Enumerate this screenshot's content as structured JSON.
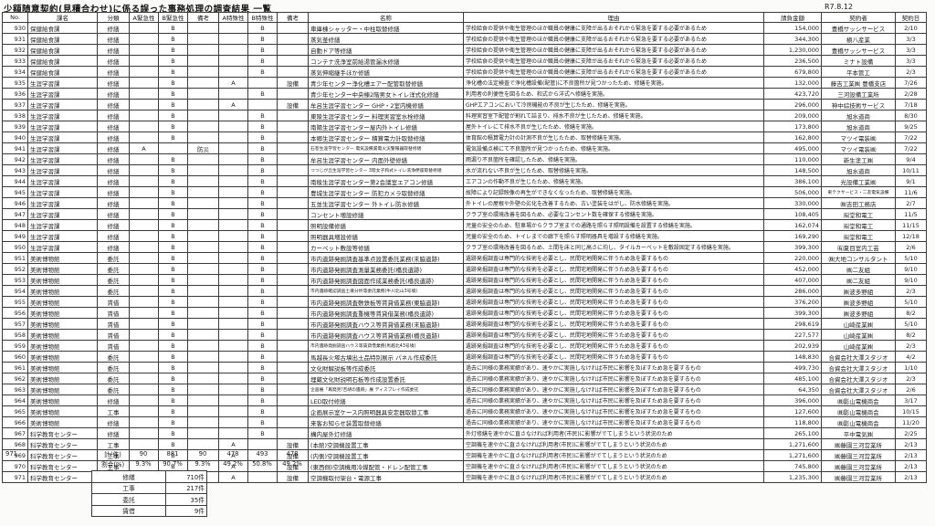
{
  "document": {
    "title": "少額随意契約(見積合わせ)に係る誤った事務処理の調査結果 一覧",
    "date": "R7.8.12"
  },
  "table": {
    "headers": [
      "No.",
      "課名",
      "分類",
      "A緊急性",
      "B緊急性",
      "備考",
      "A特殊性",
      "B特殊性",
      "備考",
      "名称",
      "理由",
      "請負金額",
      "契約者",
      "契約日"
    ],
    "col_keys": [
      "no",
      "department",
      "category",
      "urgency-a",
      "urgency-b",
      "note1",
      "special-a",
      "special-b",
      "note2",
      "name",
      "reason",
      "amount",
      "contractor",
      "date"
    ],
    "small_name_rows": [
      "941",
      "943",
      "954",
      "959",
      "963"
    ],
    "small_contractor_rows": [
      "945"
    ],
    "rows": [
      [
        "930",
        "保健給食課",
        "修繕",
        "",
        "B",
        "",
        "",
        "B",
        "",
        "車庫棟シャッター・中柱取替修繕",
        "学校給食の提供や衛生管理のほか職員の健康に支障が出るおそれから緊急を要する必要があるため",
        "154,000",
        "豊橋サッシサービス",
        "2/10"
      ],
      [
        "931",
        "保健給食課",
        "修繕",
        "",
        "B",
        "",
        "",
        "B",
        "",
        "蒸気釜修繕",
        "学校給食の提供や衛生管理のほか職員の健康に支障が出るおそれから緊急を要する必要があるため",
        "344,300",
        "槇八産業",
        "3/3"
      ],
      [
        "932",
        "保健給食課",
        "修繕",
        "",
        "B",
        "",
        "",
        "B",
        "",
        "自動ドア等修繕",
        "学校給食の提供や衛生管理のほか職員の健康に支障が出るおそれから緊急を要する必要があるため",
        "1,230,000",
        "豊橋サッシサービス",
        "3/3"
      ],
      [
        "933",
        "保健給食課",
        "修繕",
        "",
        "B",
        "",
        "",
        "B",
        "",
        "コンテナ洗浄室前給湯管漏水修繕",
        "学校給食の提供や衛生管理のほか職員の健康に支障が出るおそれから緊急を要する必要があるため",
        "236,500",
        "ミナト設備",
        "3/3"
      ],
      [
        "934",
        "保健給食課",
        "修繕",
        "",
        "B",
        "",
        "",
        "B",
        "",
        "蒸気伸縮継手ほか修繕",
        "学校給食の提供や衛生管理のほか職員の健康に支障が出るおそれから緊急を要する必要があるため",
        "679,800",
        "平本管工",
        "2/3"
      ],
      [
        "935",
        "生涯学習課",
        "修繕",
        "",
        "B",
        "",
        "A",
        "",
        "設備",
        "青少年センター浄化槽エアー配管取替修繕",
        "浄化槽の法定検査で浄化槽設備(配管)に不良箇所が見つかったため、修繕を実施。",
        "132,000",
        "藤吉工業㈱ 豊橋支店",
        "7/26"
      ],
      [
        "936",
        "生涯学習課",
        "修繕",
        "",
        "B",
        "",
        "",
        "B",
        "",
        "青少年センター中央棟2階男女トイレ洋式化修繕",
        "利用者の利便性を図るため、和式から洋式へ修繕を実施。",
        "423,720",
        "三河設備工業所",
        "2/28"
      ],
      [
        "937",
        "生涯学習課",
        "修繕",
        "",
        "B",
        "",
        "A",
        "",
        "設備",
        "牟呂生涯学習センター GHP・2室内機修繕",
        "GHPエアコンにおいて冷房機能の不良が生じたため、修繕を実施。",
        "296,000",
        "神中綜技術サービス",
        "7/18"
      ],
      [
        "938",
        "生涯学習課",
        "修繕",
        "",
        "B",
        "",
        "",
        "B",
        "",
        "東陵生涯学習センター 料理実習室水栓修繕",
        "料理実習室下配管が割れて詰まり、排水不良が生じたため、修繕を実施。",
        "209,000",
        "旭水道商",
        "8/30"
      ],
      [
        "939",
        "生涯学習課",
        "修繕",
        "",
        "B",
        "",
        "",
        "B",
        "",
        "南陽生涯学習センター屋内外トイレ修繕",
        "屋外トイレにて排水不良が生じたため、修繕を実施。",
        "173,800",
        "旭水道商",
        "9/25"
      ],
      [
        "940",
        "生涯学習課",
        "修繕",
        "",
        "B",
        "",
        "",
        "B",
        "",
        "本郷生涯学習センター 積算電力計取替修繕",
        "体育館の積算電力計の計測不良が生じたため、取替修繕を実施。",
        "162,800",
        "マツイ電装㈱",
        "7/22"
      ],
      [
        "941",
        "生涯学習課",
        "修繕",
        "A",
        "",
        "防災",
        "",
        "B",
        "",
        "石巻生涯学習センター 電気設備漏電火災警報器取替修繕",
        "電気設備点検にて不良箇所が見つかったため、修繕を実施。",
        "495,000",
        "マツイ電装㈱",
        "7/22"
      ],
      [
        "942",
        "生涯学習課",
        "修繕",
        "",
        "B",
        "",
        "",
        "B",
        "",
        "牟呂生涯学習センター 内面外壁修繕",
        "雨漏り不良箇所を確認したため、修繕を実施。",
        "110,000",
        "新生塗工㈱",
        "9/4"
      ],
      [
        "943",
        "生涯学習課",
        "修繕",
        "",
        "B",
        "",
        "",
        "B",
        "",
        "つつじが丘生涯学習センター 3階女子和式トイレ洗浄便座取替修繕",
        "水が流れない不良が生じたため、取替修繕を実施。",
        "148,500",
        "旭水道商",
        "10/11"
      ],
      [
        "944",
        "生涯学習課",
        "修繕",
        "",
        "B",
        "",
        "",
        "B",
        "",
        "南稜生涯学習センター第2会議室エアコン修繕",
        "エアコンの作動不良が生じたため、修繕を実施。",
        "386,100",
        "光設備工業㈱",
        "9/1"
      ],
      [
        "945",
        "生涯学習課",
        "修繕",
        "",
        "B",
        "",
        "",
        "B",
        "",
        "豊城生涯学習センター 防犯カメラ取替修繕",
        "故障により記録映像の再生ができなくなったため、取替修繕を実施。",
        "506,000",
        "東テクサービス・二友電気設備",
        "11/6"
      ],
      [
        "946",
        "生涯学習課",
        "修繕",
        "",
        "B",
        "",
        "",
        "B",
        "",
        "五並生涯学習センター 外トイレ防水修繕",
        "外トイレの屋根や外壁の劣化を改善するため、古い塗装をはがし、防水修繕を実施。",
        "330,000",
        "㈱吉田工務店",
        "2/7"
      ],
      [
        "947",
        "生涯学習課",
        "修繕",
        "",
        "B",
        "",
        "",
        "B",
        "",
        "コンセント増設修繕",
        "クラブ室の環境改善を図るため、必要なコンセント数を確保する修繕を実施。",
        "108,405",
        "㈲堂和電工",
        "11/5"
      ],
      [
        "948",
        "生涯学習課",
        "修繕",
        "",
        "B",
        "",
        "",
        "B",
        "",
        "照明設備修繕",
        "児童の安全のため、駐車場からクラブ室までの通路を照らす照明設備を設置する修繕を実施。",
        "162,074",
        "㈲堂和電工",
        "11/15"
      ],
      [
        "949",
        "生涯学習課",
        "修繕",
        "",
        "B",
        "",
        "",
        "B",
        "",
        "照明器具増設修繕",
        "児童の安全のため、トイレまでの廊下を照らす照明器具を増設する修繕を実施。",
        "169,290",
        "㈲堂和電工",
        "12/18"
      ],
      [
        "950",
        "生涯学習課",
        "修繕",
        "",
        "B",
        "",
        "",
        "B",
        "",
        "カーペット敷設等修繕",
        "クラブ室の環境改善を図るため、土間を床と同じ高さに均し、タイルカーペットを敷設固定する修繕を実施。",
        "399,300",
        "㈲夏目室内工芸",
        "2/6"
      ],
      [
        "951",
        "美術博物館",
        "委託",
        "",
        "B",
        "",
        "",
        "B",
        "",
        "市内遺跡発掘調査基準点設置委託業務(末脇遺跡)",
        "遺跡発掘調査は専門的な技術を必要とし、民間宅地開発に伴うため急を要するもの",
        "220,000",
        "㈱大地コンサルタント",
        "5/10"
      ],
      [
        "952",
        "美術博物館",
        "委託",
        "",
        "B",
        "",
        "",
        "B",
        "",
        "市内遺跡発掘調査測量業務委託(橋良遺跡)",
        "遺跡発掘調査は専門的な技術を必要とし、民間宅地開発に伴うため急を要するもの",
        "452,000",
        "㈱二友組",
        "9/10"
      ],
      [
        "953",
        "美術博物館",
        "委託",
        "",
        "B",
        "",
        "",
        "B",
        "",
        "市内遺跡発掘調査図面作成業務委託(橋良遺跡)",
        "遺跡発掘調査は専門的な技術を必要とし、民間宅地開発に伴うため急を要するもの",
        "407,000",
        "㈱二友組",
        "9/10"
      ],
      [
        "954",
        "美術博物館",
        "委託",
        "",
        "B",
        "",
        "",
        "B",
        "",
        "市内遺跡確認調査土壌分析等委託業務(牛川北山3号墳)",
        "遺跡発掘調査は専門的な技術を必要とし、民間宅地開発に伴うため急を要するもの",
        "286,000",
        "㈱波多野組",
        "2/3"
      ],
      [
        "955",
        "美術博物館",
        "賃借",
        "",
        "B",
        "",
        "",
        "B",
        "",
        "市内遺跡発掘調査敷鉄板等賃貸借業務(東脇遺跡)",
        "遺跡発掘調査は専門的な技術を必要とし、民間宅地開発に伴うため急を要するもの",
        "376,200",
        "㈱波多野組",
        "5/10"
      ],
      [
        "956",
        "美術博物館",
        "賃借",
        "",
        "B",
        "",
        "",
        "B",
        "",
        "市内遺跡発掘調査重機等賃貸借業務(橋良遺跡)",
        "遺跡発掘調査は専門的な技術を必要とし、民間宅地開発に伴うため急を要するもの",
        "399,300",
        "㈱波多野組",
        "8/2"
      ],
      [
        "957",
        "美術博物館",
        "賃借",
        "",
        "B",
        "",
        "",
        "B",
        "",
        "市内遺跡発掘調査ハウス等賃貸借業務(末脇遺跡)",
        "遺跡発掘調査は専門的な技術を必要とし、民間宅地開発に伴うため急を要するもの",
        "298,619",
        "山崎産業㈱",
        "5/10"
      ],
      [
        "958",
        "美術博物館",
        "賃借",
        "",
        "B",
        "",
        "",
        "B",
        "",
        "市内遺跡発掘調査ハウス等賃貸借業務(橋良遺跡)",
        "遺跡発掘調査は専門的な技術を必要とし、民間宅地開発に伴うため急を要するもの",
        "227,577",
        "山崎産業㈱",
        "8/2"
      ],
      [
        "959",
        "美術博物館",
        "賃借",
        "",
        "B",
        "",
        "",
        "B",
        "",
        "市内遺跡発掘調査ハウス等賃貸借業務(馬越北43号墳)",
        "遺跡発掘調査は専門的な技術を必要とし、民間宅地開発に伴うため急を要するもの",
        "202,939",
        "山崎産業㈱",
        "2/3"
      ],
      [
        "960",
        "美術博物館",
        "委託",
        "",
        "B",
        "",
        "",
        "B",
        "",
        "馬越長火塚古墳出土品特別展示 パネル作成委託",
        "遺跡発掘調査は専門的な技術を必要とし、民間宅地開発に伴うため急を要するもの",
        "148,830",
        "合資会社大澤スタジオ",
        "4/2"
      ],
      [
        "961",
        "美術博物館",
        "委託",
        "",
        "B",
        "",
        "",
        "B",
        "",
        "文化財解説板等作成委託",
        "過去に同様の業務実績があり、速やかに実施しなければ市民に影響を及ぼすため急を要するもの",
        "499,730",
        "合資会社大澤スタジオ",
        "1/10"
      ],
      [
        "962",
        "美術博物館",
        "委託",
        "",
        "B",
        "",
        "",
        "B",
        "",
        "埋蔵文化財説明石板等作成設置委託",
        "過去に同様の業務実績があり、速やかに実施しなければ市民に影響を及ぼすため急を要するもの",
        "485,100",
        "合資会社大澤スタジオ",
        "2/3"
      ],
      [
        "963",
        "美術博物館",
        "委託",
        "",
        "B",
        "",
        "",
        "B",
        "",
        "企画展「再発見!吉胡の遺跡」展 ディスプレイ作成委託",
        "過去に同様の業務実績があり、速やかに実施しなければ市民に影響を及ぼすため急を要するもの",
        "64,350",
        "合資会社大澤スタジオ",
        "2/6"
      ],
      [
        "964",
        "美術博物館",
        "修繕",
        "",
        "B",
        "",
        "",
        "B",
        "",
        "LED取付修繕",
        "過去に同様の業務実績があり、速やかに実施しなければ市民に影響を及ぼすため急を要するもの",
        "396,000",
        "㈱影山電機商会",
        "3/17"
      ],
      [
        "965",
        "美術博物館",
        "工事",
        "",
        "B",
        "",
        "",
        "B",
        "",
        "企画展示室ケース内照明器具安定器取替工事",
        "過去に同様の業務実績があり、速やかに実施しなければ市民に影響を及ぼすため急を要するもの",
        "127,600",
        "㈱影山電機商会",
        "10/15"
      ],
      [
        "966",
        "美術博物館",
        "修繕",
        "",
        "B",
        "",
        "",
        "B",
        "",
        "来客お知らせ装置取替修繕",
        "過去に同様の業務実績があり、速やかに実施しなければ市民に影響を及ぼすため急を要するもの",
        "118,800",
        "㈱影山電機商会",
        "11/20"
      ],
      [
        "967",
        "科学教育センター",
        "修繕",
        "",
        "B",
        "",
        "",
        "B",
        "",
        "構内屋外灯修繕",
        "外灯修繕を速やかに直さなければ利用者(市民)に影響がでてしまうという状況のため",
        "265,100",
        "平中電気㈱",
        "2/25"
      ],
      [
        "968",
        "科学教育センター",
        "工事",
        "",
        "B",
        "",
        "A",
        "",
        "設備",
        "(本館)空調機設置工事",
        "空調機を速やかに直さなければ利用者(市民)に影響がでてしまうという状況のため",
        "1,271,600",
        "㈱藤園三河営業所",
        "2/13"
      ],
      [
        "969",
        "科学教育センター",
        "工事",
        "",
        "B",
        "",
        "A",
        "",
        "設備",
        "(内側)空調機設置工事",
        "空調機を速やかに直さなければ利用者(市民)に影響がでてしまうという状況のため",
        "1,271,600",
        "㈱藤園三河営業所",
        "2/13"
      ],
      [
        "970",
        "科学教育センター",
        "工事",
        "",
        "B",
        "",
        "A",
        "",
        "設備",
        "(東西側)空調機用冷媒配管・ドレン配管工事",
        "空調機を速やかに直さなければ利用者(市民)に影響がでてしまうという状況のため",
        "745,800",
        "㈱藤園三河営業所",
        "2/13"
      ],
      [
        "971",
        "科学教育センター",
        "工事",
        "",
        "B",
        "",
        "A",
        "",
        "設備",
        "空調機取付架台・電源工事",
        "空調機を速やかに直さなければ利用者(市民)に影響がでてしまうという状況のため",
        "1,235,300",
        "㈱藤園三河営業所",
        "2/13"
      ]
    ]
  },
  "summary": {
    "total_no": "971",
    "total_label": "計(件)",
    "total_values": [
      "90",
      "881",
      "90",
      "478",
      "493",
      "478"
    ],
    "percent_label": "割合(%)",
    "percent_values": [
      "9.3%",
      "90.7%",
      "9.3%",
      "49.2%",
      "50.8%",
      "49.2%"
    ]
  },
  "category_counts": {
    "rows": [
      {
        "label": "修繕",
        "count": "710件"
      },
      {
        "label": "工事",
        "count": "217件"
      },
      {
        "label": "委託",
        "count": "35件"
      },
      {
        "label": "賃借",
        "count": "9件"
      }
    ]
  }
}
